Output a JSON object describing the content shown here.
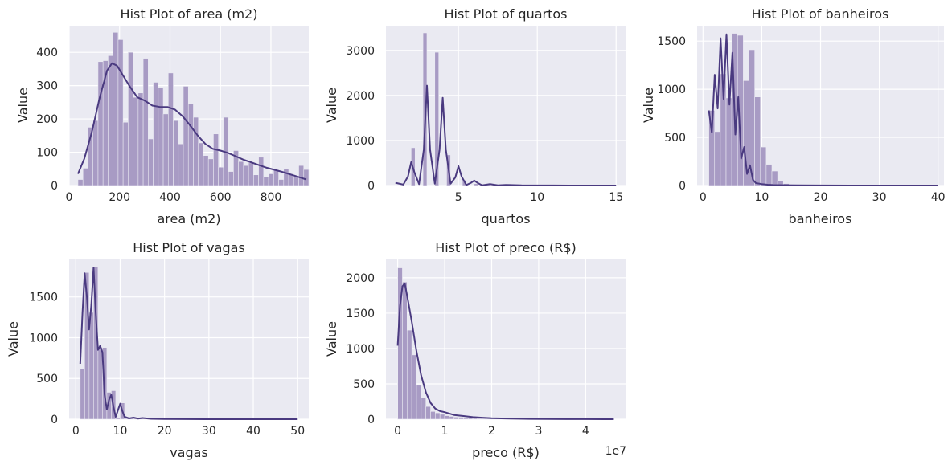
{
  "style": {
    "axes_bg": "#EAEAF2",
    "grid_color": "#FFFFFF",
    "bar_fill": "#A89BC4",
    "bar_edge": "#EAEAF2",
    "kde_color": "#4A3A80",
    "text_color": "#262626"
  },
  "chart_data": [
    {
      "type": "bar",
      "title": "Hist Plot of area (m2)",
      "xlabel": "area (m2)",
      "ylabel": "Value",
      "xlim": [
        0,
        950
      ],
      "ylim": [
        0,
        480
      ],
      "xticks": [
        0,
        200,
        400,
        600,
        800
      ],
      "yticks": [
        0,
        100,
        200,
        300,
        400
      ],
      "xtick_labels": [
        "0",
        "200",
        "400",
        "600",
        "800"
      ],
      "ytick_labels": [
        "0",
        "100",
        "200",
        "300",
        "400"
      ],
      "grid": true,
      "bin_range": [
        35,
        950
      ],
      "values": [
        18,
        52,
        175,
        195,
        372,
        375,
        390,
        460,
        438,
        190,
        400,
        265,
        278,
        382,
        140,
        310,
        295,
        215,
        338,
        195,
        125,
        298,
        245,
        205,
        128,
        90,
        80,
        155,
        55,
        205,
        42,
        105,
        72,
        60,
        68,
        32,
        85,
        25,
        35,
        48,
        18,
        50,
        35,
        25,
        60,
        48
      ],
      "kde": {
        "x": [
          35,
          60,
          90,
          120,
          150,
          170,
          190,
          210,
          240,
          270,
          300,
          330,
          360,
          390,
          420,
          450,
          480,
          510,
          540,
          570,
          600,
          630,
          660,
          690,
          720,
          750,
          780,
          810,
          840,
          870,
          900,
          940
        ],
        "y": [
          35,
          80,
          160,
          260,
          345,
          367,
          360,
          335,
          298,
          265,
          255,
          240,
          236,
          236,
          228,
          208,
          180,
          150,
          125,
          110,
          105,
          98,
          88,
          78,
          70,
          62,
          54,
          48,
          42,
          35,
          28,
          18
        ]
      }
    },
    {
      "type": "bar",
      "title": "Hist Plot of quartos",
      "xlabel": "quartos",
      "ylabel": "Value",
      "xlim": [
        0.4,
        15.6
      ],
      "ylim": [
        0,
        3550
      ],
      "xticks": [
        5,
        10,
        15
      ],
      "yticks": [
        0,
        1000,
        2000,
        3000
      ],
      "xtick_labels": [
        "5",
        "10",
        "15"
      ],
      "ytick_labels": [
        "0",
        "1000",
        "2000",
        "3000"
      ],
      "grid": true,
      "bin_range": [
        1,
        15
      ],
      "values": [
        0,
        0,
        0,
        0,
        840,
        0,
        0,
        3390,
        0,
        0,
        2960,
        0,
        0,
        680,
        0,
        0,
        0,
        120,
        0,
        0,
        40,
        0,
        0,
        20,
        0,
        0,
        8,
        0,
        0,
        5,
        0,
        0,
        0,
        0,
        0,
        0,
        0,
        0,
        0,
        0,
        0,
        0,
        0,
        0,
        0,
        0,
        0,
        0,
        0,
        0,
        0,
        0,
        0,
        0,
        0,
        0
      ],
      "kde": {
        "x": [
          1,
          1.5,
          1.8,
          2,
          2.2,
          2.5,
          2.8,
          3,
          3.2,
          3.5,
          3.8,
          4,
          4.2,
          4.5,
          4.8,
          5,
          5.2,
          5.5,
          5.8,
          6,
          6.2,
          6.5,
          7,
          7.5,
          8,
          9,
          10,
          11,
          12,
          13,
          14,
          15
        ],
        "y": [
          60,
          20,
          200,
          520,
          300,
          30,
          800,
          2220,
          800,
          40,
          800,
          1950,
          800,
          40,
          180,
          430,
          200,
          10,
          60,
          110,
          60,
          5,
          30,
          5,
          15,
          3,
          2,
          1,
          0,
          0,
          0,
          0
        ]
      }
    },
    {
      "type": "bar",
      "title": "Hist Plot of banheiros",
      "xlabel": "banheiros",
      "ylabel": "Value",
      "xlim": [
        -1,
        41
      ],
      "ylim": [
        0,
        1660
      ],
      "xticks": [
        0,
        10,
        20,
        30,
        40
      ],
      "yticks": [
        0,
        500,
        1000,
        1500
      ],
      "xtick_labels": [
        "0",
        "10",
        "20",
        "30",
        "40"
      ],
      "ytick_labels": [
        "0",
        "500",
        "1000",
        "1500"
      ],
      "grid": true,
      "bin_range": [
        1,
        40
      ],
      "values": [
        780,
        560,
        1160,
        910,
        1580,
        1560,
        1090,
        1410,
        920,
        400,
        220,
        150,
        50,
        20,
        10,
        5,
        4,
        3,
        2,
        2,
        1,
        1,
        1,
        1,
        0,
        0,
        0,
        0,
        0,
        0,
        0,
        0,
        0,
        0,
        0,
        0,
        0,
        0,
        0,
        1
      ],
      "kde": {
        "x": [
          1,
          1.5,
          2,
          2.5,
          3,
          3.5,
          4,
          4.5,
          5,
          5.5,
          6,
          6.5,
          7,
          7.5,
          8,
          8.5,
          9,
          10,
          11,
          12,
          14,
          16,
          20,
          25,
          30,
          35,
          40
        ],
        "y": [
          780,
          550,
          1150,
          800,
          1530,
          900,
          1570,
          840,
          1380,
          530,
          920,
          280,
          400,
          120,
          210,
          60,
          25,
          15,
          8,
          5,
          3,
          2,
          1,
          0,
          0,
          0,
          0
        ]
      }
    },
    {
      "type": "bar",
      "title": "Hist Plot of vagas",
      "xlabel": "vagas",
      "ylabel": "Value",
      "xlim": [
        -1.5,
        52.5
      ],
      "ylim": [
        0,
        1960
      ],
      "xticks": [
        0,
        10,
        20,
        30,
        40,
        50
      ],
      "yticks": [
        0,
        500,
        1000,
        1500
      ],
      "xtick_labels": [
        "0",
        "10",
        "20",
        "30",
        "40",
        "50"
      ],
      "ytick_labels": [
        "0",
        "500",
        "1000",
        "1500"
      ],
      "grid": true,
      "bin_range": [
        1,
        50
      ],
      "values": [
        620,
        1800,
        1310,
        1870,
        880,
        880,
        330,
        350,
        20,
        200,
        10,
        20,
        10,
        20,
        5,
        5,
        4,
        3,
        3,
        2,
        2,
        1,
        1,
        1,
        1,
        1,
        0,
        0,
        0,
        0,
        0,
        0,
        0,
        0,
        0,
        0,
        0,
        0,
        0,
        0,
        0,
        0,
        0,
        0,
        0,
        0,
        0,
        0,
        1
      ],
      "kde": {
        "x": [
          1,
          1.5,
          2,
          2.5,
          3,
          3.5,
          4,
          4.5,
          5,
          5.5,
          6,
          6.5,
          7,
          7.5,
          8,
          8.5,
          9,
          9.5,
          10,
          10.5,
          11,
          12,
          13,
          14,
          15,
          17,
          20,
          25,
          30,
          40,
          50
        ],
        "y": [
          680,
          1300,
          1790,
          1500,
          1100,
          1400,
          1860,
          1300,
          850,
          900,
          820,
          300,
          120,
          240,
          300,
          150,
          30,
          110,
          190,
          100,
          30,
          10,
          20,
          8,
          15,
          5,
          3,
          1,
          0,
          0,
          0
        ]
      }
    },
    {
      "type": "bar",
      "title": "Hist Plot of preco (R$)",
      "xlabel": "preco (R$)",
      "ylabel": "Value",
      "x_offset_label": "1e7",
      "xlim": [
        -0.25,
        4.85
      ],
      "ylim": [
        0,
        2260
      ],
      "xticks": [
        0,
        1,
        2,
        3,
        4
      ],
      "yticks": [
        0,
        500,
        1000,
        1500,
        2000
      ],
      "xtick_labels": [
        "0",
        "1",
        "2",
        "3",
        "4"
      ],
      "ytick_labels": [
        "0",
        "500",
        "1000",
        "1500",
        "2000"
      ],
      "grid": true,
      "bin_range": [
        0,
        4.6
      ],
      "values": [
        2140,
        1940,
        1260,
        910,
        480,
        300,
        180,
        110,
        90,
        70,
        50,
        40,
        30,
        28,
        22,
        18,
        15,
        12,
        10,
        8,
        7,
        6,
        5,
        4,
        3,
        3,
        2,
        2,
        2,
        1,
        1,
        1,
        1,
        1,
        1,
        0,
        0,
        0,
        0,
        0,
        0,
        0,
        0,
        0,
        0,
        1
      ],
      "kde": {
        "x": [
          0,
          0.05,
          0.1,
          0.15,
          0.2,
          0.3,
          0.4,
          0.5,
          0.6,
          0.7,
          0.8,
          0.9,
          1.0,
          1.2,
          1.4,
          1.6,
          1.8,
          2.0,
          2.4,
          2.8,
          3.2,
          3.6,
          4.0,
          4.4,
          4.6
        ],
        "y": [
          1040,
          1600,
          1880,
          1920,
          1750,
          1380,
          960,
          620,
          380,
          230,
          150,
          115,
          100,
          60,
          45,
          30,
          22,
          15,
          8,
          4,
          2,
          1,
          1,
          0,
          0
        ]
      }
    }
  ]
}
